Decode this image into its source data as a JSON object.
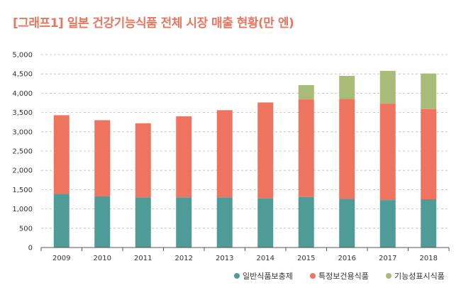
{
  "title": "[그래프1] 일본 건강기능식품 전체 시장 매출 현황(만 엔)",
  "colors": {
    "title": "#e9775f",
    "series": [
      "#4f9b97",
      "#ee7460",
      "#a8bc78"
    ],
    "grid": "#bdbdbd",
    "axis": "#555555"
  },
  "chart_data": {
    "type": "bar",
    "stacked": true,
    "title": "[그래프1] 일본 건강기능식품 전체 시장 매출 현황(만 엔)",
    "xlabel": "",
    "ylabel": "",
    "categories": [
      "2009",
      "2010",
      "2011",
      "2012",
      "2013",
      "2014",
      "2015",
      "2016",
      "2017",
      "2018"
    ],
    "ylim": [
      0,
      5000
    ],
    "yticks": [
      "0",
      "500",
      "1,000",
      "1,500",
      "2,000",
      "2,500",
      "3,000",
      "3,500",
      "4,000",
      "4,500",
      "5,000"
    ],
    "grid": true,
    "legend_position": "bottom-right",
    "series": [
      {
        "name": "일반식품보충제",
        "values": [
          1390,
          1330,
          1300,
          1300,
          1300,
          1270,
          1310,
          1260,
          1230,
          1250
        ]
      },
      {
        "name": "특정보건용식품",
        "values": [
          2040,
          1970,
          1920,
          2100,
          2260,
          2490,
          2530,
          2590,
          2500,
          2340
        ]
      },
      {
        "name": "기능성표시식품",
        "values": [
          0,
          0,
          0,
          0,
          0,
          0,
          370,
          600,
          850,
          920
        ]
      }
    ]
  }
}
